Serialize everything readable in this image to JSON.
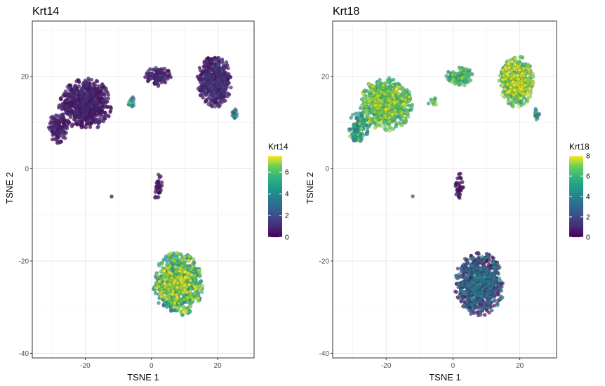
{
  "chart_data": [
    {
      "type": "scatter",
      "title": "Krt14",
      "xlabel": "TSNE 1",
      "ylabel": "TSNE 2",
      "xlim": [
        -36,
        31
      ],
      "ylim": [
        -41,
        32
      ],
      "xticks": [
        -20,
        0,
        20
      ],
      "yticks": [
        -40,
        -20,
        0,
        20
      ],
      "grid": true,
      "legend": {
        "title": "Krt14",
        "position": "right",
        "min": 0,
        "max": 7.5,
        "ticks": [
          0,
          2,
          4,
          6
        ]
      },
      "colormap": "viridis",
      "clusters": [
        {
          "name": "top-left",
          "center": [
            -20,
            14
          ],
          "spread": [
            7,
            5
          ],
          "n": 700,
          "value_mean": 0.3,
          "value_sd": 0.4
        },
        {
          "name": "top-left-outer",
          "center": [
            -28,
            9
          ],
          "spread": [
            3,
            3
          ],
          "n": 120,
          "value_mean": 0.4,
          "value_sd": 0.4
        },
        {
          "name": "top-middle",
          "center": [
            2,
            20
          ],
          "spread": [
            3.5,
            1.8
          ],
          "n": 120,
          "value_mean": 0.5,
          "value_sd": 0.4
        },
        {
          "name": "top-right",
          "center": [
            19,
            19
          ],
          "spread": [
            4.5,
            5
          ],
          "n": 550,
          "value_mean": 0.5,
          "value_sd": 0.5
        },
        {
          "name": "small-mid-left",
          "center": [
            -6,
            14.5
          ],
          "spread": [
            1.2,
            1
          ],
          "n": 12,
          "value_mean": 3.5,
          "value_sd": 0.8
        },
        {
          "name": "small-right",
          "center": [
            25,
            12
          ],
          "spread": [
            0.8,
            1.2
          ],
          "n": 15,
          "value_mean": 3.0,
          "value_sd": 0.8
        },
        {
          "name": "center",
          "center": [
            2,
            -4
          ],
          "spread": [
            1.2,
            2.6
          ],
          "n": 30,
          "value_mean": 0.2,
          "value_sd": 0.2
        },
        {
          "name": "lone",
          "center": [
            -12,
            -6
          ],
          "spread": [
            0.1,
            0.1
          ],
          "n": 1,
          "value_mean": 0.1,
          "value_sd": 0.05
        },
        {
          "name": "bottom",
          "center": [
            8,
            -25
          ],
          "spread": [
            6.5,
            6
          ],
          "n": 900,
          "value_mean": 4.8,
          "value_sd": 1.3
        }
      ]
    },
    {
      "type": "scatter",
      "title": "Krt18",
      "xlabel": "TSNE 1",
      "ylabel": "TSNE 2",
      "xlim": [
        -36,
        31
      ],
      "ylim": [
        -41,
        32
      ],
      "xticks": [
        -20,
        0,
        20
      ],
      "yticks": [
        -40,
        -20,
        0,
        20
      ],
      "grid": true,
      "legend": {
        "title": "Krt18",
        "position": "right",
        "min": 0,
        "max": 8,
        "ticks": [
          0,
          2,
          4,
          6,
          8
        ]
      },
      "colormap": "viridis",
      "clusters": [
        {
          "name": "top-left",
          "center": [
            -20,
            14
          ],
          "spread": [
            7,
            5
          ],
          "n": 700,
          "value_mean": 5.6,
          "value_sd": 0.9
        },
        {
          "name": "top-left-outer",
          "center": [
            -28,
            9
          ],
          "spread": [
            3,
            3
          ],
          "n": 120,
          "value_mean": 3.8,
          "value_sd": 1.0
        },
        {
          "name": "top-middle",
          "center": [
            2,
            20
          ],
          "spread": [
            3.5,
            1.8
          ],
          "n": 120,
          "value_mean": 5.0,
          "value_sd": 0.8
        },
        {
          "name": "top-right",
          "center": [
            19,
            19
          ],
          "spread": [
            4.5,
            5
          ],
          "n": 550,
          "value_mean": 6.0,
          "value_sd": 1.0
        },
        {
          "name": "small-mid-left",
          "center": [
            -6,
            14.5
          ],
          "spread": [
            1.2,
            1
          ],
          "n": 12,
          "value_mean": 5.5,
          "value_sd": 0.6
        },
        {
          "name": "small-right",
          "center": [
            25,
            12
          ],
          "spread": [
            0.8,
            1.2
          ],
          "n": 15,
          "value_mean": 3.5,
          "value_sd": 0.8
        },
        {
          "name": "center",
          "center": [
            2,
            -4
          ],
          "spread": [
            1.2,
            2.6
          ],
          "n": 30,
          "value_mean": 0.2,
          "value_sd": 0.2
        },
        {
          "name": "lone",
          "center": [
            -12,
            -6
          ],
          "spread": [
            0.1,
            0.1
          ],
          "n": 1,
          "value_mean": 2.0,
          "value_sd": 0.1
        },
        {
          "name": "bottom",
          "center": [
            8,
            -25
          ],
          "spread": [
            6.5,
            6
          ],
          "n": 900,
          "value_mean": 1.4,
          "value_sd": 1.2
        }
      ]
    }
  ]
}
